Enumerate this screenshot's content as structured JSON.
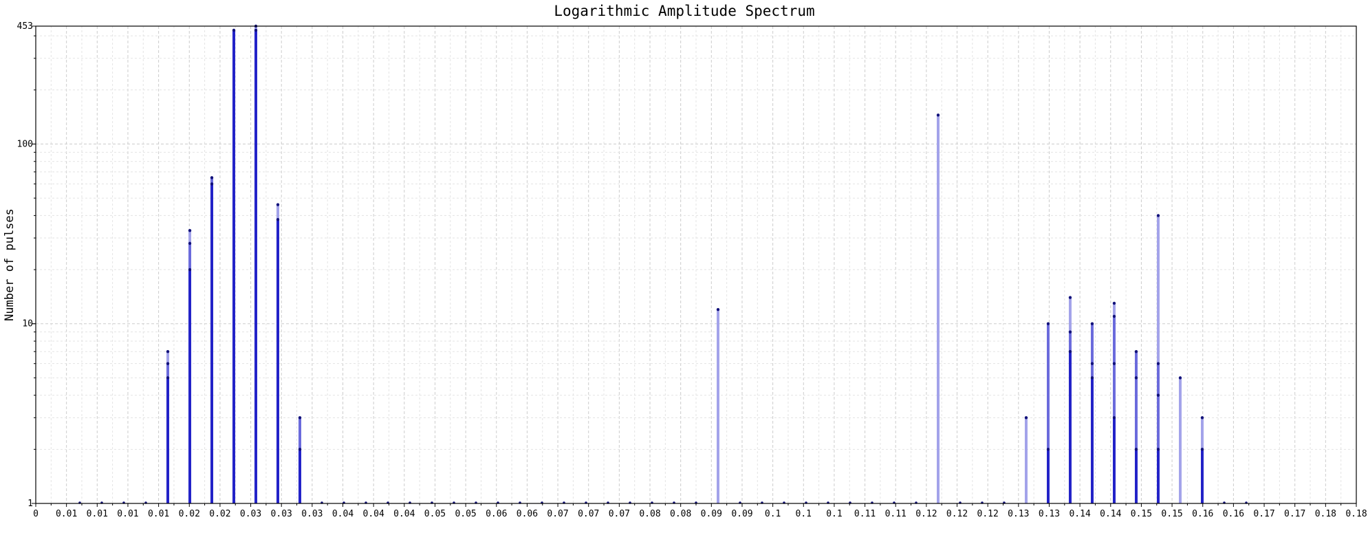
{
  "chart_data": {
    "type": "bar",
    "title": "Logarithmic Amplitude Spectrum",
    "xlabel": "",
    "ylabel": "Number of pulses",
    "yscale": "log",
    "ylim": [
      1,
      453
    ],
    "xlim": [
      0,
      0.18
    ],
    "grid": true,
    "y_tick_labels": [
      {
        "value": 1,
        "label": "1"
      },
      {
        "value": 10,
        "label": "10"
      },
      {
        "value": 100,
        "label": "100"
      },
      {
        "value": 453,
        "label": "453"
      }
    ],
    "x_tick_labels": [
      "0",
      "0.01",
      "0.01",
      "0.01",
      "0.01",
      "0.02",
      "0.02",
      "0.03",
      "0.03",
      "0.03",
      "0.04",
      "0.04",
      "0.04",
      "0.05",
      "0.05",
      "0.06",
      "0.06",
      "0.07",
      "0.07",
      "0.07",
      "0.08",
      "0.08",
      "0.09",
      "0.09",
      "0.1",
      "0.1",
      "0.1",
      "0.11",
      "0.11",
      "0.12",
      "0.12",
      "0.12",
      "0.13",
      "0.13",
      "0.14",
      "0.14",
      "0.15",
      "0.15",
      "0.16",
      "0.16",
      "0.17",
      "0.17",
      "0.18",
      "0.18"
    ],
    "bin_width": 0.003,
    "colors": {
      "dark": "#2323c8",
      "mid": "#6b6bdc",
      "light": "#a3a3ea",
      "marker": "#12127a"
    },
    "baseline_markers": [
      0.006,
      0.009,
      0.012,
      0.015,
      0.039,
      0.042,
      0.045,
      0.048,
      0.051,
      0.054,
      0.057,
      0.06,
      0.063,
      0.066,
      0.069,
      0.072,
      0.075,
      0.078,
      0.081,
      0.084,
      0.087,
      0.09,
      0.096,
      0.099,
      0.102,
      0.105,
      0.108,
      0.111,
      0.114,
      0.117,
      0.12,
      0.126,
      0.129,
      0.132,
      0.162,
      0.165
    ],
    "bars": [
      {
        "x": 0.018,
        "segments": [
          {
            "y": 5,
            "shade": "dark"
          },
          {
            "y": 6,
            "shade": "mid"
          },
          {
            "y": 7,
            "shade": "light"
          }
        ]
      },
      {
        "x": 0.021,
        "segments": [
          {
            "y": 20,
            "shade": "dark"
          },
          {
            "y": 28,
            "shade": "mid"
          },
          {
            "y": 33,
            "shade": "light"
          }
        ]
      },
      {
        "x": 0.024,
        "segments": [
          {
            "y": 60,
            "shade": "dark"
          },
          {
            "y": 65,
            "shade": "mid"
          }
        ]
      },
      {
        "x": 0.027,
        "segments": [
          {
            "y": 430,
            "shade": "dark"
          }
        ]
      },
      {
        "x": 0.03,
        "segments": [
          {
            "y": 430,
            "shade": "dark"
          },
          {
            "y": 453,
            "shade": "light"
          }
        ]
      },
      {
        "x": 0.033,
        "segments": [
          {
            "y": 38,
            "shade": "dark"
          },
          {
            "y": 46,
            "shade": "light"
          }
        ]
      },
      {
        "x": 0.036,
        "segments": [
          {
            "y": 2,
            "shade": "dark"
          },
          {
            "y": 3,
            "shade": "mid"
          }
        ]
      },
      {
        "x": 0.093,
        "segments": [
          {
            "y": 12,
            "shade": "light"
          }
        ]
      },
      {
        "x": 0.123,
        "segments": [
          {
            "y": 145,
            "shade": "light"
          }
        ]
      },
      {
        "x": 0.135,
        "segments": [
          {
            "y": 3,
            "shade": "light"
          }
        ]
      },
      {
        "x": 0.138,
        "segments": [
          {
            "y": 2,
            "shade": "dark"
          },
          {
            "y": 10,
            "shade": "mid"
          }
        ]
      },
      {
        "x": 0.141,
        "segments": [
          {
            "y": 7,
            "shade": "dark"
          },
          {
            "y": 9,
            "shade": "mid"
          },
          {
            "y": 14,
            "shade": "light"
          }
        ]
      },
      {
        "x": 0.144,
        "segments": [
          {
            "y": 5,
            "shade": "dark"
          },
          {
            "y": 6,
            "shade": "mid"
          },
          {
            "y": 10,
            "shade": "mid"
          }
        ]
      },
      {
        "x": 0.147,
        "segments": [
          {
            "y": 3,
            "shade": "dark"
          },
          {
            "y": 6,
            "shade": "mid"
          },
          {
            "y": 11,
            "shade": "mid"
          },
          {
            "y": 13,
            "shade": "light"
          }
        ]
      },
      {
        "x": 0.15,
        "segments": [
          {
            "y": 2,
            "shade": "dark"
          },
          {
            "y": 5,
            "shade": "mid"
          },
          {
            "y": 7,
            "shade": "mid"
          }
        ]
      },
      {
        "x": 0.153,
        "segments": [
          {
            "y": 2,
            "shade": "dark"
          },
          {
            "y": 4,
            "shade": "mid"
          },
          {
            "y": 6,
            "shade": "mid"
          },
          {
            "y": 40,
            "shade": "light"
          }
        ]
      },
      {
        "x": 0.156,
        "segments": [
          {
            "y": 5,
            "shade": "light"
          }
        ]
      },
      {
        "x": 0.159,
        "segments": [
          {
            "y": 2,
            "shade": "dark"
          },
          {
            "y": 3,
            "shade": "light"
          }
        ]
      }
    ]
  }
}
